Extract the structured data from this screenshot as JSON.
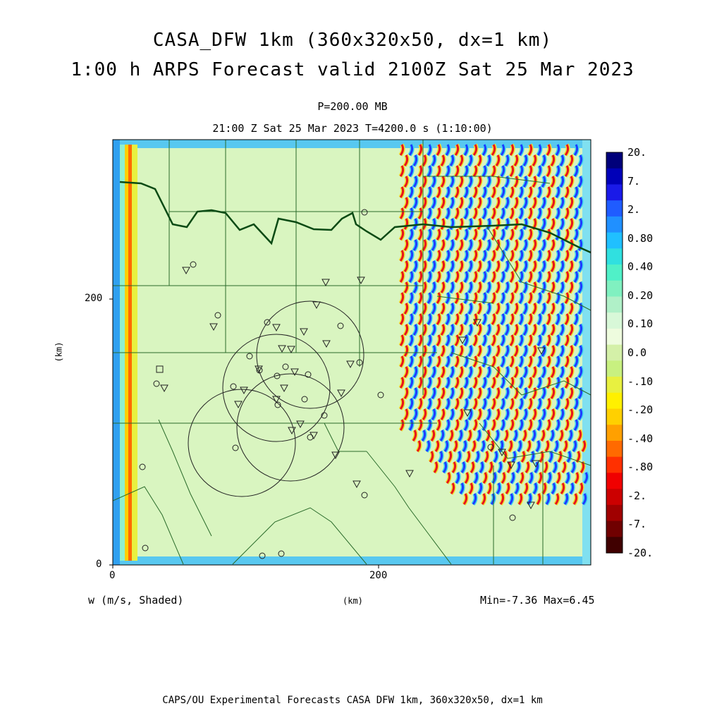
{
  "header": {
    "title_line1": "CASA_DFW 1km (360x320x50, dx=1 km)",
    "title_line2": "1:00 h ARPS Forecast valid 2100Z Sat 25 Mar 2023",
    "level": "P=200.00 MB",
    "time": "21:00 Z Sat 25 Mar 2023   T=4200.0 s (1:10:00)"
  },
  "axes": {
    "x_ticks": [
      "0",
      "200"
    ],
    "y_ticks": [
      "0",
      "200"
    ],
    "x_unit": "(km)",
    "y_unit": "(km)"
  },
  "footer": {
    "variable": "w (m/s, Shaded)",
    "stats": "Min=-7.36 Max=6.45",
    "credit": "CAPS/OU Experimental Forecasts  CASA DFW 1km, 360x320x50, dx=1 km"
  },
  "colorbar": {
    "labels": [
      "20.",
      "7.",
      "2.",
      "0.80",
      "0.40",
      "0.20",
      "0.10",
      "0.0",
      "-.10",
      "-.20",
      "-.40",
      "-.80",
      "-2.",
      "-7.",
      "-20."
    ],
    "colors": [
      "#00007a",
      "#0000b8",
      "#1a1ae8",
      "#1f5cff",
      "#2090ff",
      "#20c0ff",
      "#30e0e0",
      "#50f0c8",
      "#80f0c0",
      "#b0f0c8",
      "#d8f8d8",
      "#eefcde",
      "#d4f0a8",
      "#c8f080",
      "#e8f040",
      "#fff000",
      "#ffd000",
      "#ffa000",
      "#ff6a00",
      "#ff3000",
      "#f00000",
      "#cc0000",
      "#a00000",
      "#700000",
      "#400000"
    ]
  },
  "map": {
    "background_color": "#d9f5c0",
    "wave_colors": {
      "red": "#e8141a",
      "blue": "#1e3cff",
      "cyan": "#3fd4f0",
      "yellow": "#f0e030"
    },
    "border_color": "#2a6b2a",
    "radar_circles": 4,
    "station_markers": "triangles, circles, square"
  }
}
